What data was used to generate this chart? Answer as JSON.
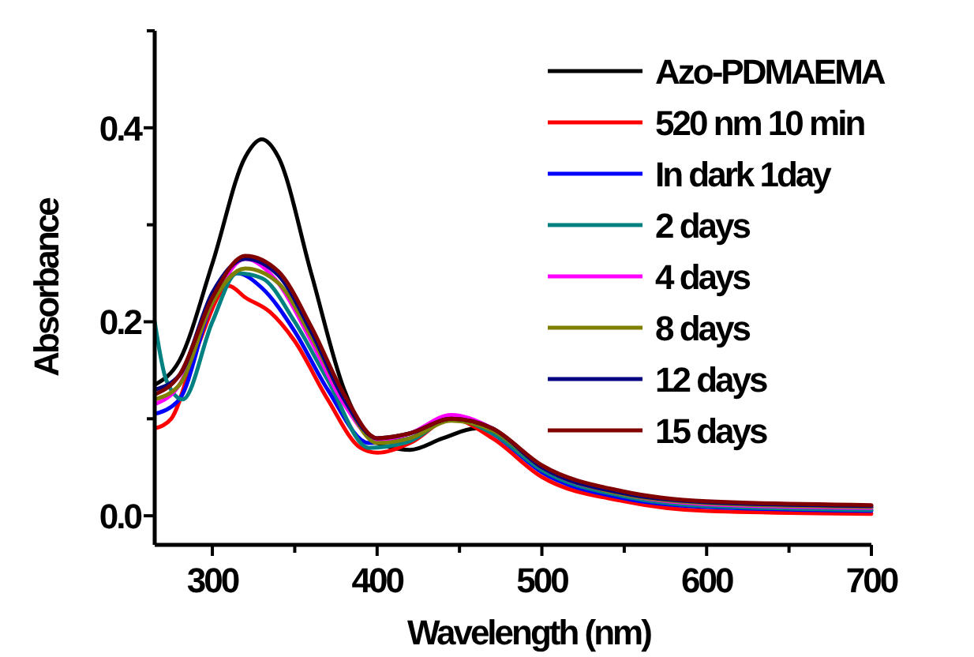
{
  "chart_data": {
    "type": "line",
    "xlabel": "Wavelength (nm)",
    "ylabel": "Absorbance",
    "xlim": [
      265,
      700
    ],
    "ylim": [
      -0.03,
      0.5
    ],
    "xticks": [
      {
        "value": 300,
        "label": "300"
      },
      {
        "value": 350,
        "label": null
      },
      {
        "value": 400,
        "label": "400"
      },
      {
        "value": 450,
        "label": null
      },
      {
        "value": 500,
        "label": "500"
      },
      {
        "value": 550,
        "label": null
      },
      {
        "value": 600,
        "label": "600"
      },
      {
        "value": 650,
        "label": null
      },
      {
        "value": 700,
        "label": "700"
      }
    ],
    "yticks": [
      {
        "value": 0,
        "label": "0.0"
      },
      {
        "value": 0.1,
        "label": null
      },
      {
        "value": 0.2,
        "label": "0.2"
      },
      {
        "value": 0.3,
        "label": null
      },
      {
        "value": 0.4,
        "label": "0.4"
      },
      {
        "value": 0.5,
        "label": null
      }
    ],
    "grid": false,
    "legend": "top right",
    "marker": "none",
    "line_style": "solid",
    "series": [
      {
        "name": "Azo-PDMAEMA",
        "color": "#000000",
        "x": [
          265,
          280,
          300,
          320,
          330,
          340,
          360,
          380,
          400,
          420,
          440,
          460,
          480,
          500,
          550,
          600,
          700
        ],
        "values": [
          0.135,
          0.16,
          0.26,
          0.37,
          0.388,
          0.37,
          0.25,
          0.13,
          0.075,
          0.068,
          0.08,
          0.09,
          0.075,
          0.045,
          0.02,
          0.012,
          0.008
        ]
      },
      {
        "name": "520 nm 10 min",
        "color": "#ff0000",
        "x": [
          265,
          275,
          290,
          310,
          320,
          335,
          350,
          370,
          390,
          400,
          420,
          445,
          470,
          500,
          550,
          600,
          700
        ],
        "values": [
          0.09,
          0.1,
          0.17,
          0.237,
          0.225,
          0.21,
          0.18,
          0.12,
          0.07,
          0.065,
          0.075,
          0.1,
          0.08,
          0.04,
          0.015,
          0.005,
          0.002
        ]
      },
      {
        "name": "In dark 1day",
        "color": "#0000ff",
        "x": [
          265,
          280,
          300,
          315,
          330,
          350,
          370,
          395,
          420,
          445,
          470,
          500,
          550,
          600,
          700
        ],
        "values": [
          0.105,
          0.12,
          0.22,
          0.25,
          0.235,
          0.19,
          0.13,
          0.075,
          0.08,
          0.103,
          0.085,
          0.045,
          0.018,
          0.009,
          0.005
        ]
      },
      {
        "name": "2 days",
        "color": "#008080",
        "x": [
          265,
          272,
          282,
          300,
          315,
          330,
          350,
          370,
          395,
          420,
          445,
          470,
          500,
          550,
          600,
          700
        ],
        "values": [
          0.2,
          0.14,
          0.12,
          0.2,
          0.25,
          0.245,
          0.2,
          0.14,
          0.07,
          0.077,
          0.1,
          0.085,
          0.047,
          0.02,
          0.01,
          0.006
        ]
      },
      {
        "name": "4 days",
        "color": "#ff00ff",
        "x": [
          265,
          280,
          300,
          320,
          340,
          360,
          380,
          400,
          420,
          445,
          470,
          500,
          550,
          600,
          700
        ],
        "values": [
          0.115,
          0.135,
          0.22,
          0.265,
          0.24,
          0.18,
          0.115,
          0.078,
          0.085,
          0.104,
          0.09,
          0.05,
          0.022,
          0.012,
          0.008
        ]
      },
      {
        "name": "8 days",
        "color": "#808000",
        "x": [
          265,
          280,
          300,
          320,
          340,
          360,
          380,
          400,
          420,
          445,
          470,
          500,
          550,
          600,
          700
        ],
        "values": [
          0.12,
          0.135,
          0.22,
          0.255,
          0.24,
          0.185,
          0.12,
          0.075,
          0.08,
          0.098,
          0.088,
          0.05,
          0.022,
          0.013,
          0.009
        ]
      },
      {
        "name": "12 days",
        "color": "#000080",
        "x": [
          265,
          280,
          300,
          320,
          340,
          360,
          380,
          400,
          420,
          445,
          470,
          500,
          550,
          600,
          700
        ],
        "values": [
          0.13,
          0.145,
          0.23,
          0.265,
          0.248,
          0.19,
          0.12,
          0.08,
          0.085,
          0.1,
          0.09,
          0.05,
          0.023,
          0.014,
          0.01
        ]
      },
      {
        "name": "15 days",
        "color": "#800000",
        "x": [
          265,
          280,
          300,
          320,
          340,
          360,
          380,
          400,
          420,
          445,
          470,
          500,
          550,
          600,
          700
        ],
        "values": [
          0.125,
          0.145,
          0.225,
          0.268,
          0.252,
          0.195,
          0.125,
          0.08,
          0.085,
          0.1,
          0.09,
          0.052,
          0.025,
          0.015,
          0.011
        ]
      }
    ]
  }
}
